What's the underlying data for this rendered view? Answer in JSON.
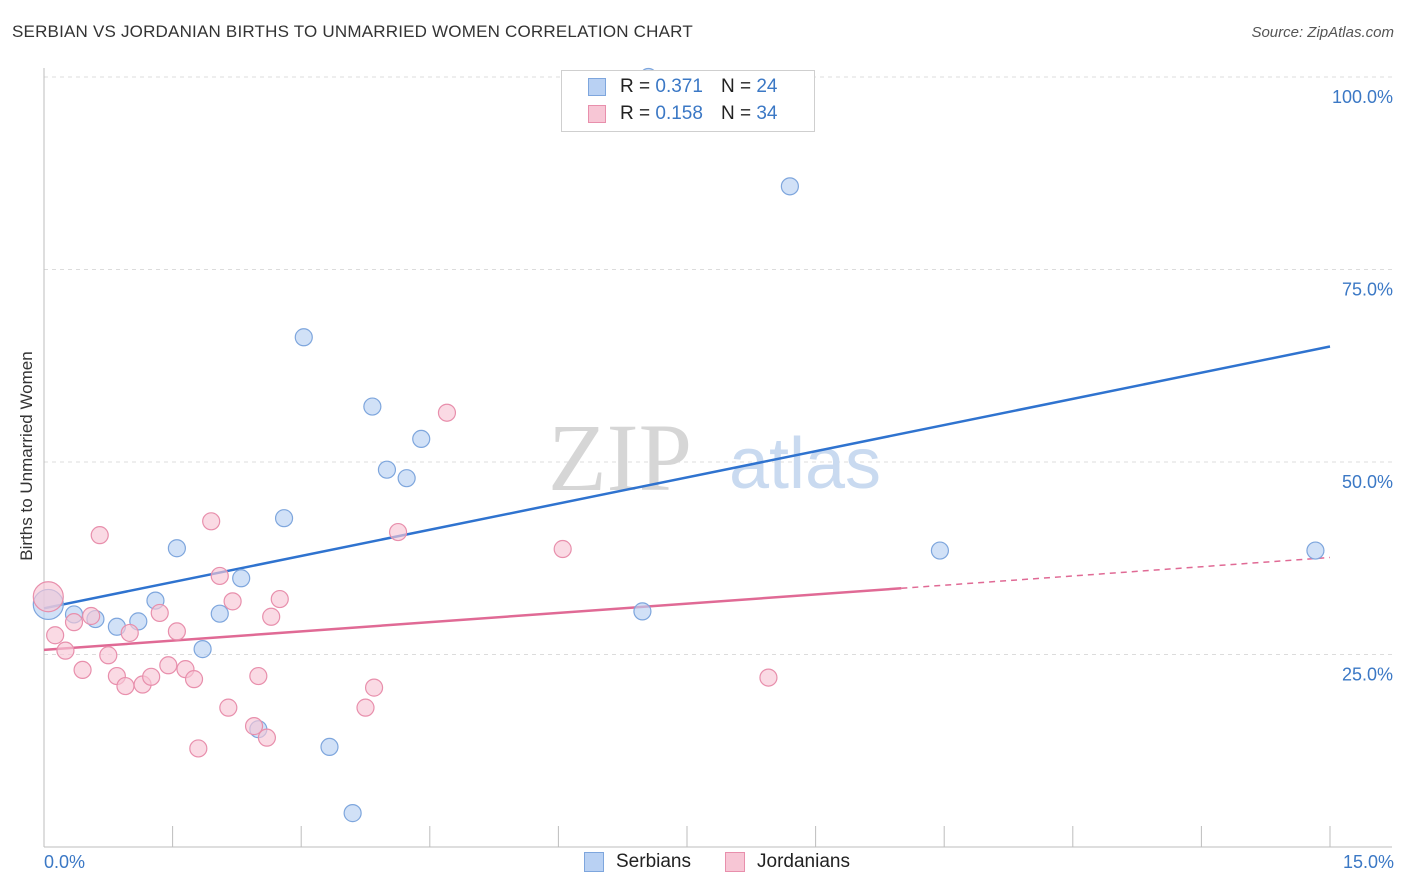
{
  "title": "SERBIAN VS JORDANIAN BIRTHS TO UNMARRIED WOMEN CORRELATION CHART",
  "source": "Source: ZipAtlas.com",
  "watermark": {
    "part1": "ZIP",
    "part2": "atlas"
  },
  "colors": {
    "serbians_fill": "#b9d1f3",
    "serbians_stroke": "#7ea6dd",
    "serbians_line": "#2f73cf",
    "jordanians_fill": "#f7c6d5",
    "jordanians_stroke": "#e88fac",
    "jordanians_line": "#e06a95",
    "axis_text": "#3b78c5"
  },
  "legend": {
    "serbians": {
      "r_label": "R =",
      "r_value": "0.371",
      "n_label": "N =",
      "n_value": "24"
    },
    "jordanians": {
      "r_label": "R =",
      "r_value": "0.158",
      "n_label": "N =",
      "n_value": "34"
    }
  },
  "chart_data": {
    "type": "scatter",
    "title": "SERBIAN VS JORDANIAN BIRTHS TO UNMARRIED WOMEN CORRELATION CHART",
    "xlabel": "",
    "ylabel": "Births to Unmarried Women",
    "xlim": [
      0,
      15
    ],
    "ylim": [
      0,
      100
    ],
    "x_tick_labels": {
      "min": "0.0%",
      "max": "15.0%"
    },
    "y_ticks": [
      {
        "value": 25,
        "label": "25.0%"
      },
      {
        "value": 50,
        "label": "50.0%"
      },
      {
        "value": 75,
        "label": "75.0%"
      },
      {
        "value": 100,
        "label": "100.0%"
      }
    ],
    "grid": true,
    "series": [
      {
        "name": "Serbians",
        "points": [
          [
            0.05,
            31.5
          ],
          [
            0.35,
            30.2
          ],
          [
            0.6,
            29.6
          ],
          [
            0.85,
            28.6
          ],
          [
            1.1,
            29.3
          ],
          [
            1.3,
            32.0
          ],
          [
            1.55,
            38.8
          ],
          [
            1.85,
            25.7
          ],
          [
            2.05,
            30.3
          ],
          [
            2.3,
            34.9
          ],
          [
            2.5,
            15.3
          ],
          [
            2.8,
            42.7
          ],
          [
            3.03,
            66.2
          ],
          [
            3.33,
            13.0
          ],
          [
            3.6,
            4.4
          ],
          [
            3.83,
            57.2
          ],
          [
            4.0,
            49.0
          ],
          [
            4.23,
            47.9
          ],
          [
            4.4,
            53.0
          ],
          [
            6.98,
            30.6
          ],
          [
            7.05,
            100.0
          ],
          [
            8.7,
            85.8
          ],
          [
            10.45,
            38.5
          ],
          [
            14.83,
            38.5
          ]
        ],
        "trend": {
          "x_start": 0,
          "y_start": 31.0,
          "x_end": 15,
          "y_end": 65.0,
          "dashed_from": null
        }
      },
      {
        "name": "Jordanians",
        "points": [
          [
            0.05,
            32.5
          ],
          [
            0.13,
            27.5
          ],
          [
            0.25,
            25.5
          ],
          [
            0.35,
            29.2
          ],
          [
            0.45,
            23.0
          ],
          [
            0.55,
            30.0
          ],
          [
            0.65,
            40.5
          ],
          [
            0.75,
            24.9
          ],
          [
            0.85,
            22.2
          ],
          [
            0.95,
            20.9
          ],
          [
            1.0,
            27.8
          ],
          [
            1.15,
            21.1
          ],
          [
            1.25,
            22.1
          ],
          [
            1.35,
            30.4
          ],
          [
            1.45,
            23.6
          ],
          [
            1.55,
            28.0
          ],
          [
            1.65,
            23.1
          ],
          [
            1.75,
            21.8
          ],
          [
            1.8,
            12.8
          ],
          [
            1.95,
            42.3
          ],
          [
            2.05,
            35.2
          ],
          [
            2.15,
            18.1
          ],
          [
            2.2,
            31.9
          ],
          [
            2.45,
            15.7
          ],
          [
            2.5,
            22.2
          ],
          [
            2.6,
            14.2
          ],
          [
            2.65,
            29.9
          ],
          [
            2.75,
            32.2
          ],
          [
            3.75,
            18.1
          ],
          [
            3.85,
            20.7
          ],
          [
            4.13,
            40.9
          ],
          [
            4.7,
            56.4
          ],
          [
            6.05,
            38.7
          ],
          [
            8.45,
            22.0
          ]
        ],
        "trend": {
          "x_start": 0,
          "y_start": 25.6,
          "x_end": 15,
          "y_end": 37.6,
          "dashed_from": 10.0
        }
      }
    ]
  }
}
